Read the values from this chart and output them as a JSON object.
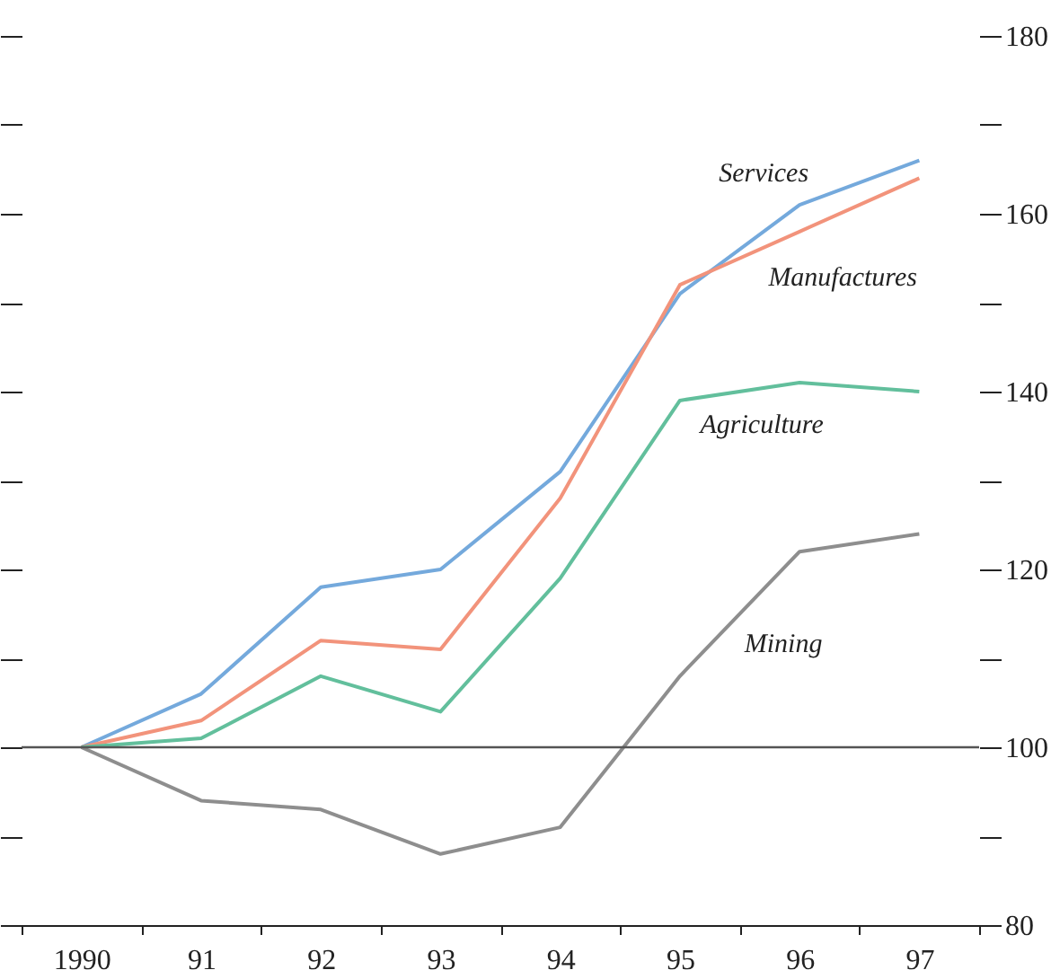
{
  "chart_data": {
    "type": "line",
    "categories": [
      "1990",
      "91",
      "92",
      "93",
      "94",
      "95",
      "96",
      "97"
    ],
    "series": [
      {
        "name": "Services",
        "color": "#74a9dc",
        "values": [
          100,
          106,
          118,
          120,
          131,
          151,
          161,
          166
        ]
      },
      {
        "name": "Manufactures",
        "color": "#f2937b",
        "values": [
          100,
          103,
          112,
          111,
          128,
          152,
          158,
          164
        ]
      },
      {
        "name": "Agriculture",
        "color": "#62bf9c",
        "values": [
          100,
          101,
          108,
          104,
          119,
          139,
          141,
          140
        ]
      },
      {
        "name": "Mining",
        "color": "#8e8e8e",
        "values": [
          100,
          94,
          93,
          88,
          91,
          108,
          122,
          124
        ]
      }
    ],
    "ylim": [
      80,
      180
    ],
    "yticks": [
      80,
      {
        "value": 90,
        "label": null
      },
      100,
      {
        "value": 110,
        "label": null
      },
      120,
      {
        "value": 130,
        "label": null
      },
      140,
      {
        "value": 150,
        "label": null
      },
      160,
      {
        "value": 170,
        "label": null
      },
      180
    ],
    "ref_lines": [
      {
        "axis": "y",
        "value": 100,
        "color": "#555555"
      }
    ],
    "grid": false,
    "legend": false
  }
}
